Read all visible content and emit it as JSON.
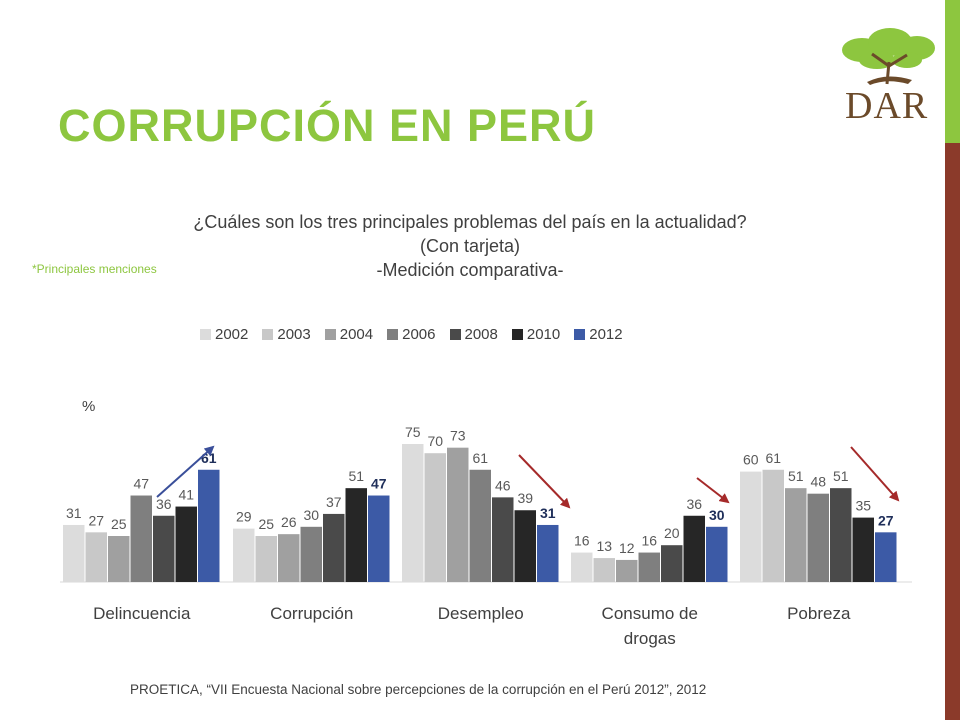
{
  "slide": {
    "title": "CORRUPCIÓN EN PERÚ",
    "logo_text": "DAR",
    "note": "*Principales menciones",
    "source": "PROETICA, “VII Encuesta Nacional sobre percepciones de la corrupción en el Perú 2012”, 2012",
    "colors": {
      "accent_green": "#8dc63f",
      "accent_brown": "#8b3a2a",
      "arrow_red": "#a52a2a",
      "arrow_blue": "#3a4f9a"
    }
  },
  "chart_data": {
    "type": "bar",
    "title_lines": [
      "¿Cuáles son los tres principales problemas del país en la actualidad?",
      "(Con tarjeta)",
      "-Medición comparativa-"
    ],
    "ylabel": "%",
    "ylim": [
      0,
      80
    ],
    "legend_position": "top",
    "grid": false,
    "categories": [
      "Delincuencia",
      "Corrupción",
      "Desempleo",
      "Consumo de drogas",
      "Pobreza"
    ],
    "series": [
      {
        "name": "2002",
        "color": "#dcdcdc",
        "values": [
          31,
          29,
          75,
          16,
          60
        ]
      },
      {
        "name": "2003",
        "color": "#c8c8c8",
        "values": [
          27,
          25,
          70,
          13,
          61
        ]
      },
      {
        "name": "2004",
        "color": "#a0a0a0",
        "values": [
          25,
          26,
          73,
          12,
          51
        ]
      },
      {
        "name": "2006",
        "color": "#7f7f7f",
        "values": [
          47,
          30,
          61,
          16,
          48
        ]
      },
      {
        "name": "2008",
        "color": "#4a4a4a",
        "values": [
          36,
          37,
          46,
          20,
          51
        ]
      },
      {
        "name": "2010",
        "color": "#262626",
        "values": [
          41,
          51,
          39,
          36,
          35
        ]
      },
      {
        "name": "2012",
        "color": "#3c5aa6",
        "values": [
          61,
          47,
          31,
          30,
          27
        ]
      }
    ],
    "highlight_series": "2012",
    "trend_arrows": [
      {
        "category": "Delincuencia",
        "direction": "up",
        "color": "blue"
      },
      {
        "category": "Desempleo",
        "direction": "down",
        "color": "red"
      },
      {
        "category": "Consumo de drogas",
        "direction": "down",
        "color": "red"
      },
      {
        "category": "Pobreza",
        "direction": "down",
        "color": "red"
      }
    ]
  }
}
